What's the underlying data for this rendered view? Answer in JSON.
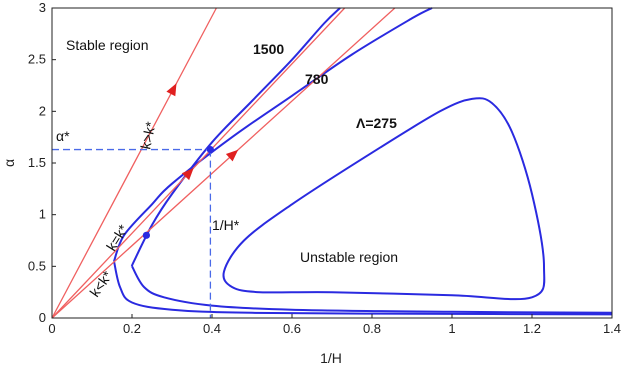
{
  "chart_data": {
    "type": "line",
    "xlabel": "1/H",
    "ylabel": "α",
    "xlim": [
      0,
      1.4
    ],
    "ylim": [
      0,
      3
    ],
    "x_ticks": [
      "0",
      "0.2",
      "0.4",
      "0.6",
      "0.8",
      "1",
      "1.2",
      "1.4"
    ],
    "y_ticks": [
      "0",
      "0.5",
      "1",
      "1.5",
      "2",
      "2.5",
      "3"
    ],
    "grid": false,
    "region_labels": {
      "stable": "Stable region",
      "unstable": "Unstable region"
    },
    "curve_labels": {
      "l1500": "1500",
      "l780": "780",
      "l275": "Λ=275"
    },
    "marker_labels": {
      "alpha_star": "α*",
      "h_star": "1/H*"
    },
    "ray_labels": {
      "greater": "k>k*",
      "equal": "k=k*",
      "less": "k<k*"
    },
    "boundary_curves": [
      {
        "label": "1500",
        "points": [
          [
            0.2,
            0.5
          ],
          [
            0.205,
            0.55
          ],
          [
            0.25,
            0.9
          ],
          [
            0.3,
            1.2
          ],
          [
            0.4,
            1.7
          ],
          [
            0.5,
            2.1
          ],
          [
            0.6,
            2.5
          ],
          [
            0.68,
            2.85
          ],
          [
            0.72,
            3.0
          ]
        ]
      },
      {
        "label": "780",
        "points": [
          [
            0.155,
            0.55
          ],
          [
            0.17,
            0.3
          ],
          [
            0.2,
            0.15
          ],
          [
            0.3,
            0.08
          ],
          [
            0.5,
            0.05
          ],
          [
            1.0,
            0.04
          ],
          [
            1.4,
            0.035
          ]
        ]
      },
      {
        "label": "780",
        "points": [
          [
            0.155,
            0.55
          ],
          [
            0.18,
            0.8
          ],
          [
            0.25,
            1.1
          ],
          [
            0.3,
            1.3
          ],
          [
            0.45,
            1.75
          ],
          [
            0.6,
            2.15
          ],
          [
            0.75,
            2.55
          ],
          [
            0.9,
            2.9
          ],
          [
            0.95,
            3.0
          ]
        ]
      },
      {
        "label": "780",
        "points": [
          [
            0.2,
            0.5
          ],
          [
            0.23,
            0.3
          ],
          [
            0.28,
            0.2
          ],
          [
            0.4,
            0.12
          ],
          [
            0.6,
            0.08
          ],
          [
            1.0,
            0.06
          ],
          [
            1.4,
            0.05
          ]
        ]
      },
      {
        "label": "Λ=275",
        "closed": true,
        "points": [
          [
            0.43,
            0.45
          ],
          [
            0.45,
            0.3
          ],
          [
            0.52,
            0.25
          ],
          [
            0.7,
            0.25
          ],
          [
            1.0,
            0.22
          ],
          [
            1.2,
            0.2
          ],
          [
            1.23,
            0.5
          ],
          [
            1.2,
            1.2
          ],
          [
            1.15,
            1.8
          ],
          [
            1.1,
            2.08
          ],
          [
            1.05,
            2.12
          ],
          [
            0.97,
            2.0
          ],
          [
            0.8,
            1.6
          ],
          [
            0.6,
            1.1
          ],
          [
            0.48,
            0.75
          ]
        ]
      }
    ],
    "rays": [
      {
        "label": "k>k*",
        "slope": 7.3
      },
      {
        "label": "k=k*",
        "slope": 4.1
      },
      {
        "label": "k<k*",
        "slope": 3.5
      }
    ],
    "points": [
      [
        0.236,
        0.8
      ],
      [
        0.396,
        1.63
      ]
    ],
    "reference_lines": {
      "alpha_star": 1.63,
      "h_star": 0.396
    },
    "colors": {
      "curve": "#2a2ae0",
      "ray": "#f06060",
      "axis": "#222222",
      "ref": "#4a6ae8"
    }
  }
}
